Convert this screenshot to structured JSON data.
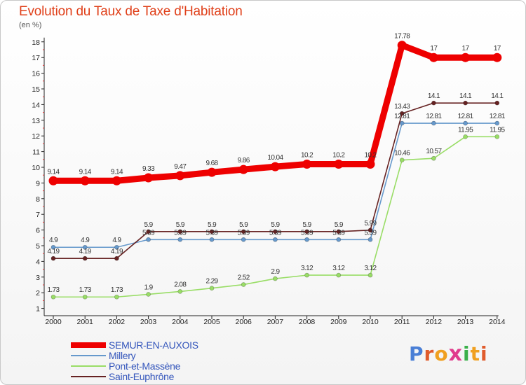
{
  "title": "Evolution du Taux de Taxe d'Habitation",
  "unit": "(en %)",
  "brand": "ProXiti",
  "brand_colors": [
    "#4a7fd6",
    "#e05b2c",
    "#f0a020",
    "#e03b8c",
    "#3ab04a",
    "#f0a020",
    "#e05b2c"
  ],
  "chart_data": {
    "type": "line",
    "x": [
      "2000",
      "2001",
      "2002",
      "2003",
      "2004",
      "2005",
      "2006",
      "2007",
      "2008",
      "2009",
      "2010",
      "2011",
      "2012",
      "2013",
      "2014"
    ],
    "ylim": [
      0,
      18
    ],
    "yticks": [
      1,
      2,
      3,
      4,
      5,
      6,
      7,
      8,
      9,
      10,
      11,
      12,
      13,
      14,
      15,
      16,
      17,
      18
    ],
    "grid": false,
    "legend_position": "bottom-left",
    "series": [
      {
        "name": "SEMUR-EN-AUXOIS",
        "color": "#ee0000",
        "values": [
          9.14,
          9.14,
          9.14,
          9.33,
          9.47,
          9.68,
          9.86,
          10.04,
          10.2,
          10.2,
          10.2,
          17.78,
          17,
          17,
          17
        ],
        "labels": [
          "9.14",
          "9.14",
          "9.14",
          "9.33",
          "9.47",
          "9.68",
          "9.86",
          "10.04",
          "10.2",
          "10.2",
          "10.2",
          "17.78",
          "17",
          "17",
          "17"
        ]
      },
      {
        "name": "Millery",
        "color": "#6699cc",
        "values": [
          4.9,
          4.9,
          4.9,
          5.39,
          5.39,
          5.39,
          5.39,
          5.39,
          5.39,
          5.39,
          5.39,
          12.81,
          12.81,
          12.81,
          12.81
        ],
        "labels": [
          "4.9",
          "4.9",
          "4.9",
          "5.39",
          "5.39",
          "5.39",
          "5.39",
          "5.39",
          "5.39",
          "5.39",
          "5.39",
          "12.81",
          "12.81",
          "12.81",
          "12.81"
        ]
      },
      {
        "name": "Pont-et-Massène",
        "color": "#99dd66",
        "values": [
          1.73,
          1.73,
          1.73,
          1.9,
          2.08,
          2.29,
          2.52,
          2.9,
          3.12,
          3.12,
          3.12,
          10.46,
          10.57,
          11.95,
          11.95
        ],
        "labels": [
          "1.73",
          "1.73",
          "1.73",
          "1.9",
          "2.08",
          "2.29",
          "2.52",
          "2.9",
          "3.12",
          "3.12",
          "3.12",
          "10.46",
          "10.57",
          "11.95",
          "11.95"
        ]
      },
      {
        "name": "Saint-Euphrône",
        "color": "#662222",
        "values": [
          4.19,
          4.19,
          4.19,
          5.9,
          5.9,
          5.9,
          5.9,
          5.9,
          5.9,
          5.9,
          5.99,
          13.43,
          14.1,
          14.1,
          14.1
        ],
        "labels": [
          "4.19",
          "4.19",
          "4.19",
          "5.9",
          "5.9",
          "5.9",
          "5.9",
          "5.9",
          "5.9",
          "5.9",
          "5.99",
          "13.43",
          "14.1",
          "14.1",
          "14.1"
        ]
      }
    ]
  }
}
